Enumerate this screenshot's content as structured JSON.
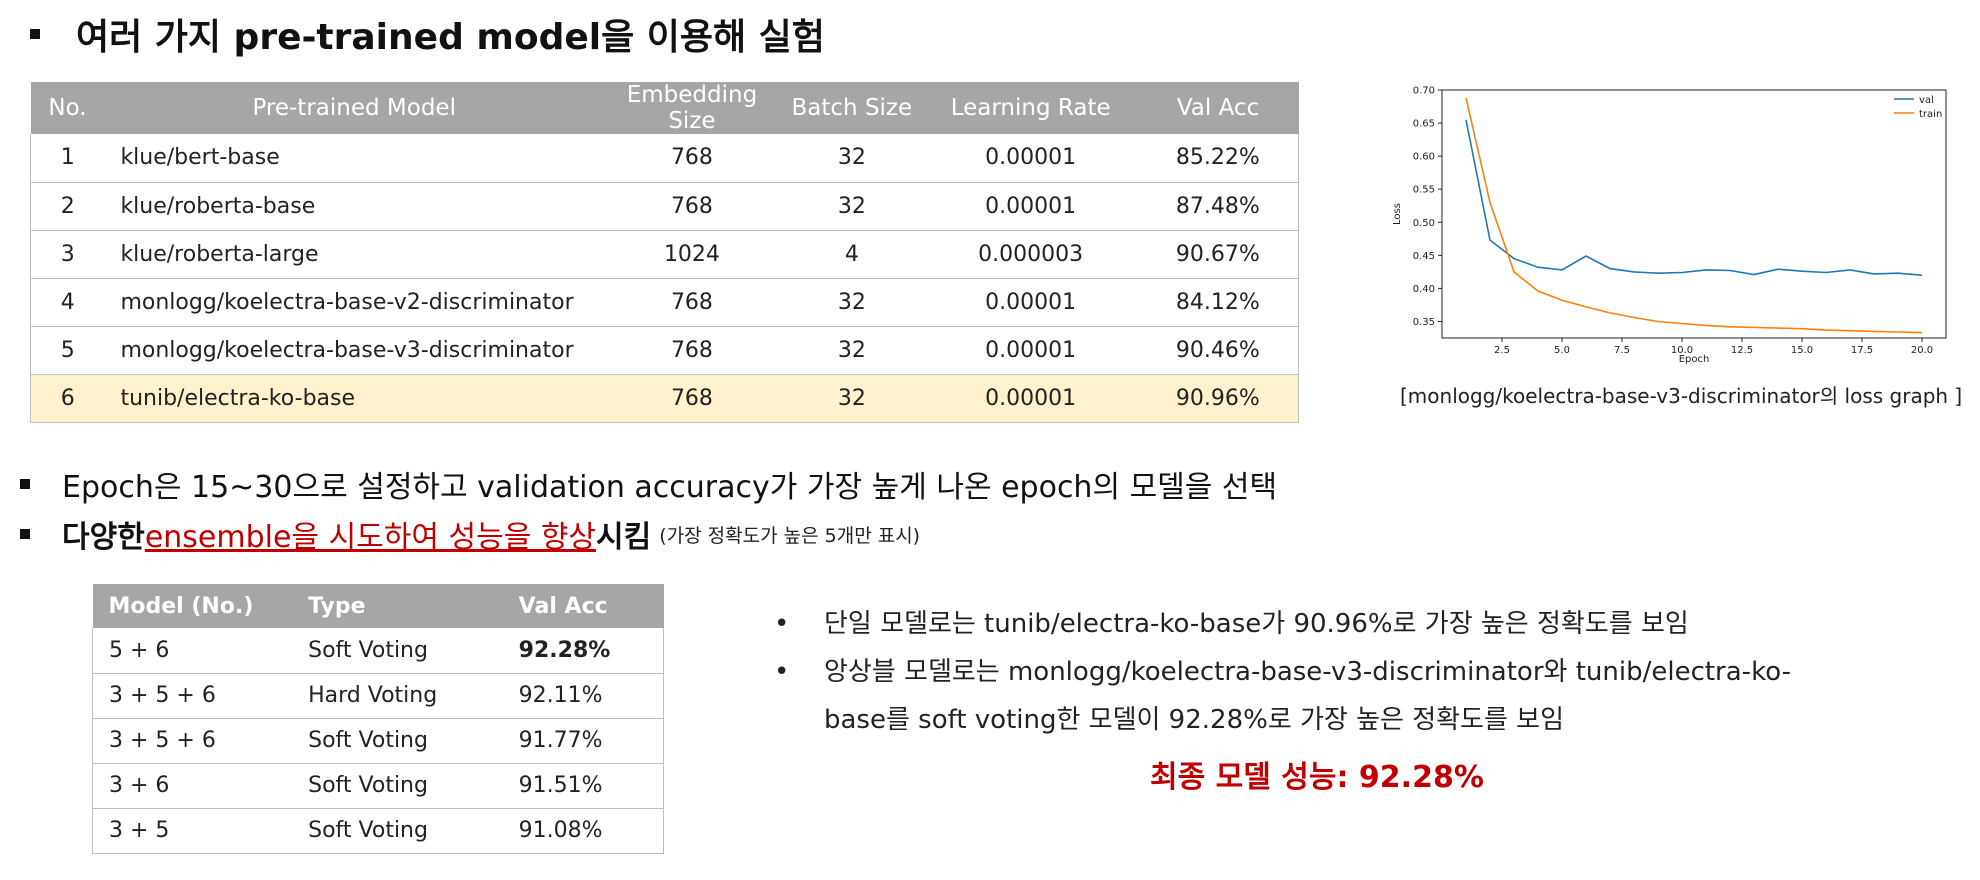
{
  "title": "여러 가지 pre-trained model을 이용해 실험",
  "model_table": {
    "headers": [
      "No.",
      "Pre-trained Model",
      "Embedding Size",
      "Batch Size",
      "Learning Rate",
      "Val Acc"
    ],
    "rows": [
      [
        "1",
        "klue/bert-base",
        "768",
        "32",
        "0.00001",
        "85.22%"
      ],
      [
        "2",
        "klue/roberta-base",
        "768",
        "32",
        "0.00001",
        "87.48%"
      ],
      [
        "3",
        "klue/roberta-large",
        "1024",
        "4",
        "0.000003",
        "90.67%"
      ],
      [
        "4",
        "monlogg/koelectra-base-v2-discriminator",
        "768",
        "32",
        "0.00001",
        "84.12%"
      ],
      [
        "5",
        "monlogg/koelectra-base-v3-discriminator",
        "768",
        "32",
        "0.00001",
        "90.46%"
      ],
      [
        "6",
        "tunib/electra-ko-base",
        "768",
        "32",
        "0.00001",
        "90.96%"
      ]
    ],
    "highlight_color": "#fff2cc"
  },
  "chart_data": {
    "type": "line",
    "xlabel": "Epoch",
    "ylabel": "Loss",
    "xlim": [
      0.0,
      21.0
    ],
    "ylim": [
      0.325,
      0.7
    ],
    "xticks": [
      "2.5",
      "5.0",
      "7.5",
      "10.0",
      "12.5",
      "15.0",
      "17.5",
      "20.0"
    ],
    "yticks": [
      "0.35",
      "0.40",
      "0.45",
      "0.50",
      "0.55",
      "0.60",
      "0.65",
      "0.70"
    ],
    "legend_position": "top-right",
    "grid": false,
    "x": [
      1,
      2,
      3,
      4,
      5,
      6,
      7,
      8,
      9,
      10,
      11,
      12,
      13,
      14,
      15,
      16,
      17,
      18,
      19,
      20
    ],
    "series": [
      {
        "name": "val",
        "color": "#1f77b4",
        "values": [
          0.655,
          0.473,
          0.445,
          0.432,
          0.428,
          0.449,
          0.43,
          0.425,
          0.423,
          0.424,
          0.428,
          0.427,
          0.421,
          0.429,
          0.426,
          0.424,
          0.428,
          0.422,
          0.423,
          0.42
        ]
      },
      {
        "name": "train",
        "color": "#ff7f0e",
        "values": [
          0.688,
          0.53,
          0.425,
          0.396,
          0.382,
          0.372,
          0.363,
          0.356,
          0.35,
          0.347,
          0.344,
          0.342,
          0.341,
          0.34,
          0.339,
          0.337,
          0.336,
          0.335,
          0.334,
          0.333
        ]
      }
    ]
  },
  "chart_caption": "[monlogg/koelectra-base-v3-discriminator의 loss graph ]",
  "bullet1": "Epoch은 15~30으로 설정하고 validation accuracy가 가장 높게 나온 epoch의 모델을 선택",
  "bullet2": {
    "pre": "다양한 ",
    "highlight": "ensemble을 시도하여 성능을 향상",
    "post": "시킴",
    "note": "(가장 정확도가 높은 5개만 표시)"
  },
  "ensemble_table": {
    "headers": [
      "Model (No.)",
      "Type",
      "Val Acc"
    ],
    "rows": [
      [
        "5 + 6",
        "Soft Voting",
        "92.28%"
      ],
      [
        "3 + 5 + 6",
        "Hard Voting",
        "92.11%"
      ],
      [
        "3 + 5 + 6",
        "Soft Voting",
        "91.77%"
      ],
      [
        "3 + 6",
        "Soft Voting",
        "91.51%"
      ],
      [
        "3 + 5",
        "Soft Voting",
        "91.08%"
      ]
    ]
  },
  "notes": [
    {
      "bullet": "•",
      "lines": [
        "단일 모델로는 tunib/electra-ko-base가 90.96%로 가장 높은 정확도를 보임"
      ]
    },
    {
      "bullet": "•",
      "lines": [
        "앙상블 모델로는 monlogg/koelectra-base-v3-discriminator와 tunib/electra-ko-",
        "base를 soft voting한 모델이 92.28%로 가장 높은 정확도를 보임"
      ]
    }
  ],
  "final_result": "최종 모델 성능: 92.28%"
}
